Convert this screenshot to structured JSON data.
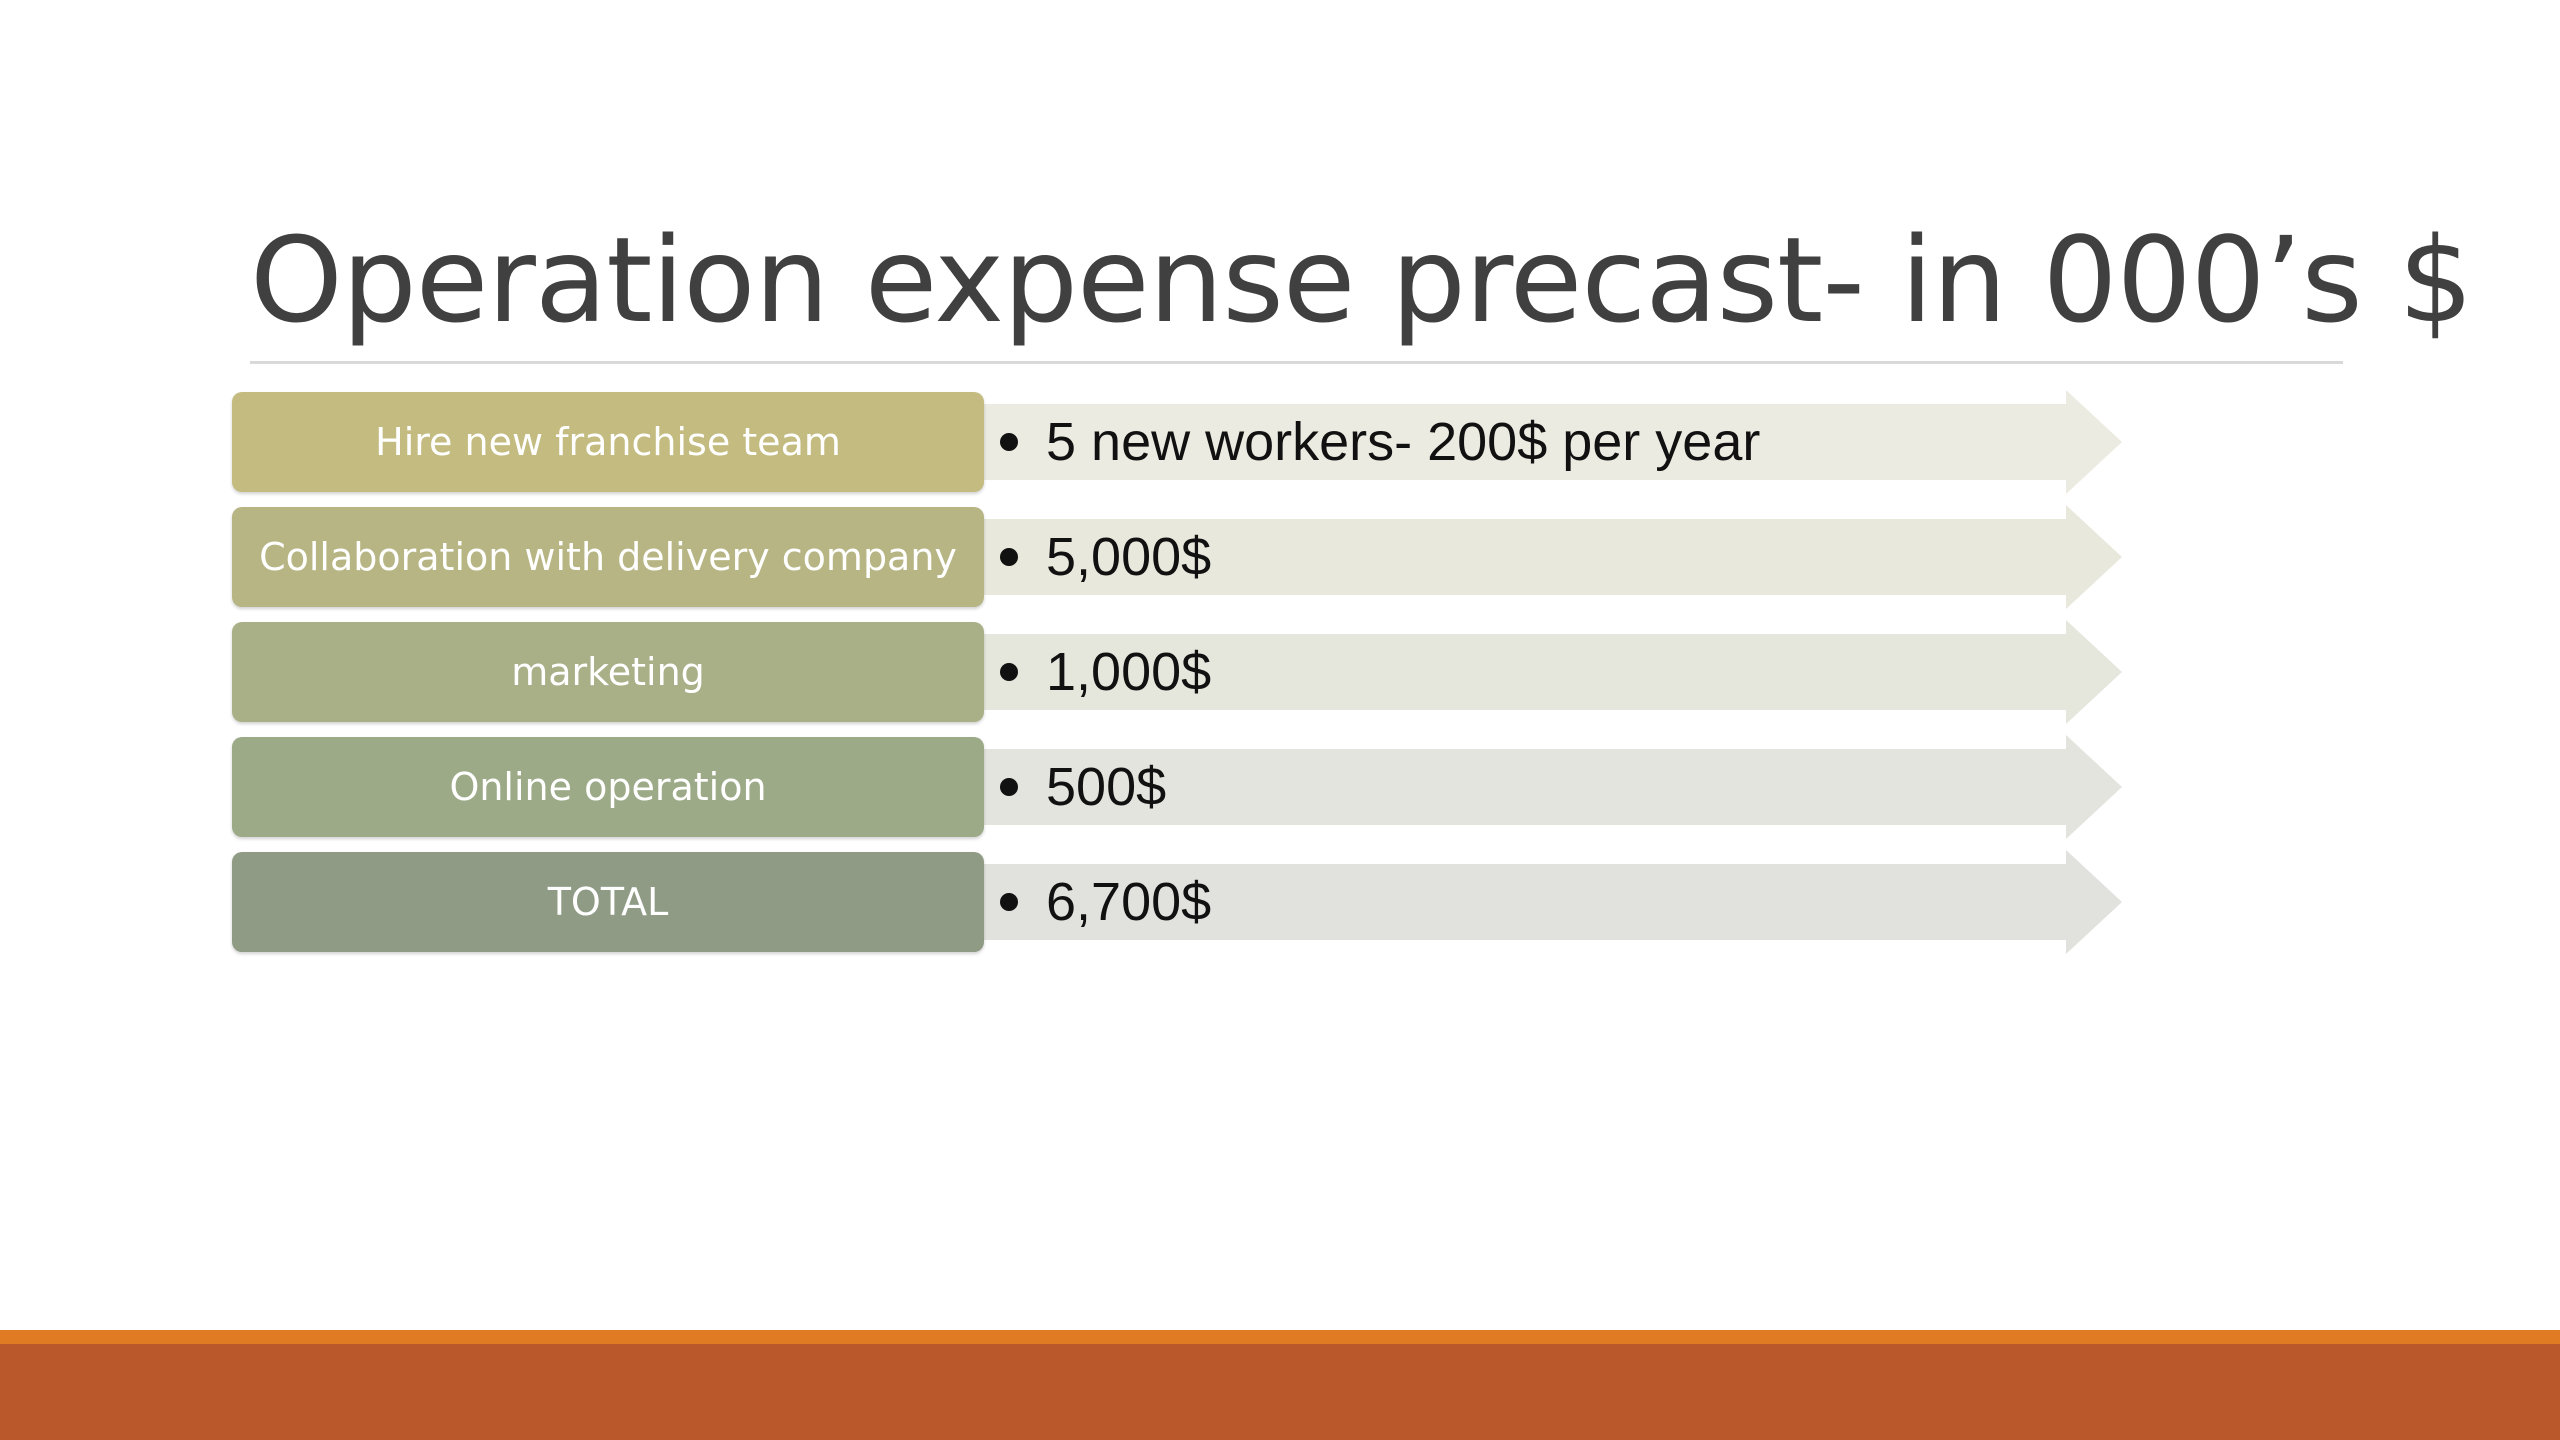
{
  "slide": {
    "title": "Operation expense precast- in 000’s $"
  },
  "rows": [
    {
      "label": "Hire new franchise team",
      "value": "5 new workers- 200$ per year",
      "box_color": "#c3bb80",
      "arrow_color": "#ecebe1"
    },
    {
      "label": "Collaboration with delivery company",
      "value": "5,000$",
      "box_color": "#b6b583",
      "arrow_color": "#e8e8dc"
    },
    {
      "label": "marketing",
      "value": "1,000$",
      "box_color": "#a9b088",
      "arrow_color": "#e5e6dc"
    },
    {
      "label": "Online operation",
      "value": "500$",
      "box_color": "#9caa87",
      "arrow_color": "#e3e4de"
    },
    {
      "label": "TOTAL",
      "value": "6,700$",
      "box_color": "#8f9b85",
      "arrow_color": "#e1e2de"
    }
  ],
  "footer": {
    "accent_color": "#e07b24",
    "bar_color": "#ba572b"
  }
}
